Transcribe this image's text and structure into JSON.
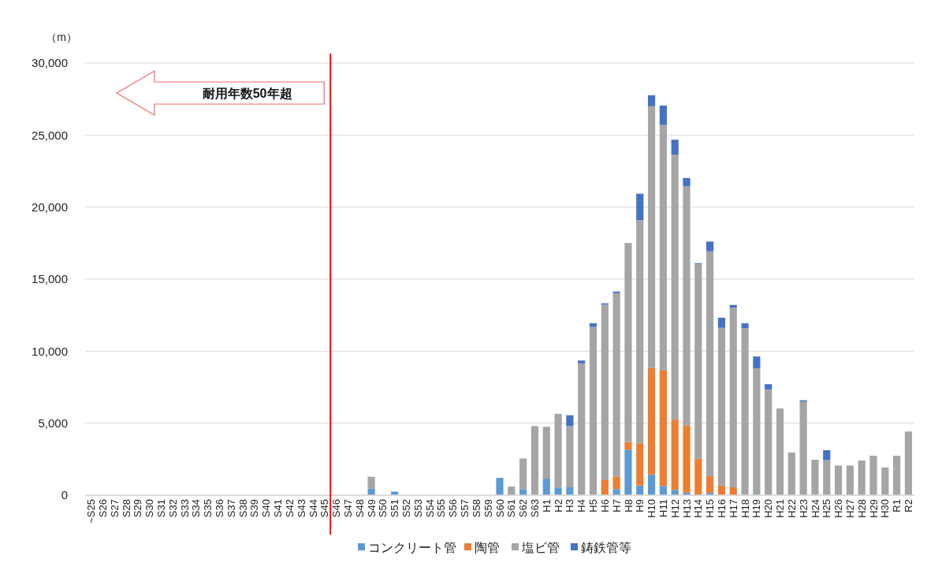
{
  "chart_data": {
    "type": "bar",
    "stacked": true,
    "categories": [
      "~S25",
      "S26",
      "S27",
      "S28",
      "S29",
      "S30",
      "S31",
      "S32",
      "S33",
      "S34",
      "S35",
      "S36",
      "S37",
      "S38",
      "S39",
      "S40",
      "S41",
      "S42",
      "S43",
      "S44",
      "S45",
      "S46",
      "S47",
      "S48",
      "S49",
      "S50",
      "S51",
      "S52",
      "S53",
      "S54",
      "S55",
      "S56",
      "S57",
      "S58",
      "S59",
      "S60",
      "S61",
      "S62",
      "S63",
      "H1",
      "H2",
      "H3",
      "H4",
      "H5",
      "H6",
      "H7",
      "H8",
      "H9",
      "H10",
      "H11",
      "H12",
      "H13",
      "H14",
      "H15",
      "H16",
      "H17",
      "H18",
      "H19",
      "H20",
      "H21",
      "H22",
      "H23",
      "H24",
      "H25",
      "H26",
      "H27",
      "H28",
      "H29",
      "H30",
      "R1",
      "R2"
    ],
    "series": [
      {
        "name": "コンクリート管",
        "color": "#5b9bd5",
        "values": [
          0,
          0,
          0,
          0,
          0,
          0,
          0,
          0,
          0,
          0,
          0,
          0,
          0,
          0,
          0,
          0,
          0,
          0,
          0,
          0,
          0,
          0,
          0,
          0,
          450,
          0,
          250,
          0,
          0,
          0,
          0,
          0,
          0,
          0,
          0,
          1200,
          0,
          400,
          0,
          1150,
          500,
          550,
          null,
          null,
          0,
          420,
          3160,
          670,
          1440,
          640,
          370,
          180,
          0,
          160,
          0,
          0,
          0,
          0,
          0,
          0,
          0,
          0,
          0,
          0,
          0,
          0,
          0,
          0,
          0,
          0,
          0
        ]
      },
      {
        "name": "陶管",
        "color": "#ed7d31",
        "values": [
          0,
          0,
          0,
          0,
          0,
          0,
          0,
          0,
          0,
          0,
          0,
          0,
          0,
          0,
          0,
          0,
          0,
          0,
          0,
          0,
          0,
          0,
          0,
          0,
          0,
          0,
          0,
          0,
          0,
          0,
          0,
          0,
          0,
          0,
          0,
          0,
          0,
          0,
          0,
          0,
          0,
          0,
          0,
          0,
          1080,
          860,
          540,
          2930,
          7410,
          8020,
          4880,
          4650,
          2530,
          1150,
          670,
          550,
          0,
          0,
          null,
          0,
          0,
          0,
          0,
          0,
          0,
          0,
          0,
          0,
          0,
          0,
          0
        ]
      },
      {
        "name": "塩ビ管",
        "color": "#a5a5a5",
        "values": [
          0,
          0,
          0,
          0,
          0,
          0,
          0,
          0,
          0,
          0,
          0,
          0,
          0,
          0,
          0,
          0,
          0,
          0,
          0,
          0,
          0,
          0,
          0,
          0,
          830,
          0,
          0,
          0,
          0,
          0,
          0,
          0,
          0,
          0,
          0,
          0,
          600,
          2150,
          4800,
          3600,
          5150,
          4250,
          9150,
          11680,
          12150,
          12750,
          13810,
          15500,
          18150,
          17060,
          18380,
          16610,
          13520,
          15620,
          10950,
          12460,
          11590,
          8810,
          7340,
          6020,
          2970,
          6500,
          2460,
          2440,
          2060,
          2060,
          2410,
          2740,
          1930,
          2740,
          4420
        ]
      },
      {
        "name": "鋳鉄管等",
        "color": "#4472c4",
        "values": [
          0,
          0,
          0,
          0,
          0,
          0,
          0,
          0,
          0,
          0,
          0,
          0,
          0,
          0,
          0,
          0,
          0,
          0,
          0,
          0,
          0,
          0,
          0,
          0,
          0,
          0,
          0,
          0,
          0,
          0,
          0,
          0,
          0,
          0,
          0,
          0,
          0,
          0,
          0,
          0,
          0,
          750,
          200,
          260,
          90,
          110,
          0,
          1830,
          770,
          1330,
          1050,
          580,
          60,
          680,
          700,
          200,
          340,
          820,
          370,
          0,
          0,
          90,
          0,
          680,
          0,
          0,
          0,
          0,
          0,
          0,
          0
        ]
      }
    ],
    "ylabel": "（m）",
    "ylim": [
      0,
      30000
    ],
    "yticks": [
      0,
      {
        "value": 5000,
        "label": "5,000"
      },
      {
        "value": 10000,
        "label": "10,000"
      },
      {
        "value": 15000,
        "label": "15,000"
      },
      {
        "value": 20000,
        "label": "20,000"
      },
      {
        "value": 25000,
        "label": "25,000"
      },
      {
        "value": 30000,
        "label": "30,000"
      }
    ],
    "grid": "y",
    "legend": "bottom",
    "ref_lines": [
      {
        "axis": "x",
        "value": "S46",
        "color": "#ff0000"
      }
    ],
    "annotations": [
      "耐用年数50年超"
    ]
  }
}
